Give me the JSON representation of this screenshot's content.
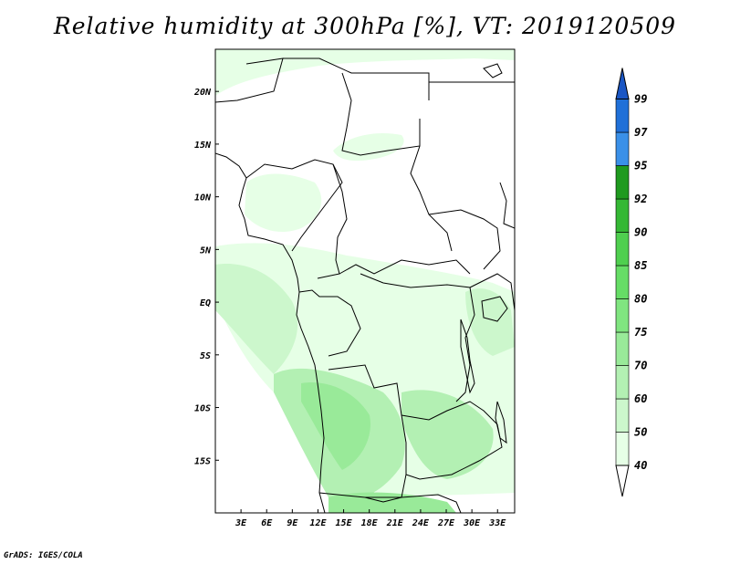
{
  "title": "Relative humidity at 300hPa [%], VT: 2019120509",
  "footer": "GrADS: IGES/COLA",
  "map": {
    "lon_range": [
      0,
      35
    ],
    "lat_range": [
      -20,
      24
    ],
    "x_ticks": [
      "3E",
      "6E",
      "9E",
      "12E",
      "15E",
      "18E",
      "21E",
      "24E",
      "27E",
      "30E",
      "33E"
    ],
    "x_tick_values": [
      3,
      6,
      9,
      12,
      15,
      18,
      21,
      24,
      27,
      30,
      33
    ],
    "y_ticks": [
      "20N",
      "15N",
      "10N",
      "5N",
      "EQ",
      "5S",
      "10S",
      "15S"
    ],
    "y_tick_values": [
      20,
      15,
      10,
      5,
      0,
      -5,
      -10,
      -15
    ]
  },
  "colorbar": {
    "levels": [
      "40",
      "50",
      "60",
      "70",
      "75",
      "80",
      "85",
      "90",
      "92",
      "95",
      "97",
      "99"
    ],
    "colors": [
      "#e6ffe6",
      "#ccf7cc",
      "#b3f0b3",
      "#99ea99",
      "#80e580",
      "#66dd66",
      "#4fcf4f",
      "#35b835",
      "#1f9a1f",
      "#3a90e8",
      "#2070d8",
      "#1a56c4"
    ]
  }
}
